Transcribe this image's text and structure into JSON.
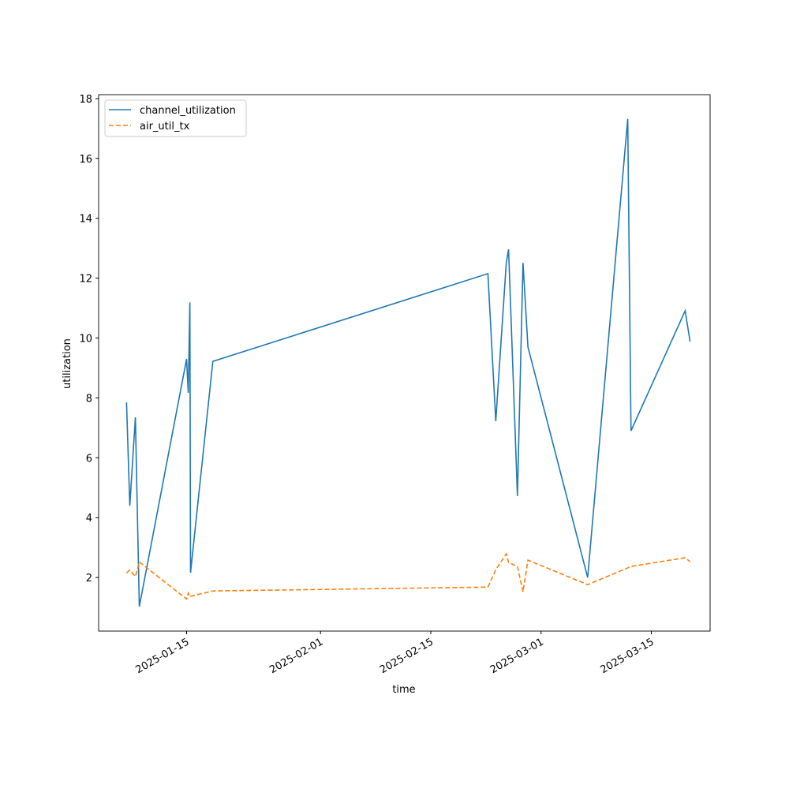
{
  "chart_data": {
    "type": "line",
    "x_label": "time",
    "y_label": "utilization",
    "x": [
      "2025-01-07T09:00",
      "2025-01-07T19:00",
      "2025-01-08T12:00",
      "2025-01-09T00:00",
      "2025-01-15T00:00",
      "2025-01-15T05:00",
      "2025-01-15T10:00",
      "2025-01-15T12:00",
      "2025-01-18T08:00",
      "2025-02-22T06:00",
      "2025-02-23T06:00",
      "2025-02-24T14:00",
      "2025-02-24T21:00",
      "2025-02-26T00:00",
      "2025-02-26T17:00",
      "2025-02-27T08:00",
      "2025-03-06T22:00",
      "2025-03-12T00:00",
      "2025-03-12T10:00",
      "2025-03-19T07:00",
      "2025-03-19T22:00"
    ],
    "series": [
      {
        "name": "channel_utilization",
        "color": "#1f77b4",
        "linestyle": "solid",
        "values": [
          7.85,
          4.4,
          7.35,
          1.03,
          9.3,
          8.17,
          11.19,
          2.16,
          9.22,
          12.15,
          7.22,
          12.51,
          12.96,
          4.72,
          12.51,
          9.7,
          2.0,
          17.32,
          6.9,
          10.91,
          9.88
        ]
      },
      {
        "name": "air_util_tx",
        "color": "#ff7f0e",
        "linestyle": "dashed",
        "values": [
          2.15,
          2.25,
          2.03,
          2.52,
          1.28,
          1.48,
          1.35,
          1.37,
          1.55,
          1.68,
          2.26,
          2.79,
          2.5,
          2.37,
          1.52,
          2.58,
          1.76,
          2.32,
          2.37,
          2.66,
          2.53
        ]
      }
    ],
    "xlim": [
      "2025-01-03T20:00",
      "2025-03-22T11:00"
    ],
    "xticks": [
      "2025-01-15",
      "2025-02-01",
      "2025-02-15",
      "2025-03-01",
      "2025-03-15"
    ],
    "ylim": [
      0.21,
      18.13
    ],
    "yticks": [
      2,
      4,
      6,
      8,
      10,
      12,
      14,
      16,
      18
    ],
    "grid": false,
    "legend": "upper left"
  }
}
